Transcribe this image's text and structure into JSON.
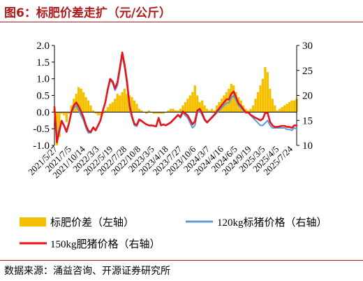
{
  "title": "图6：标肥价差走扩（元/公斤）",
  "source": "数据来源：涌益咨询、开源证券研究所",
  "colors": {
    "spread": "#f5c000",
    "price_120": "#5b9bd5",
    "price_150": "#e8141b",
    "accent": "#b0191b"
  },
  "chart_data": {
    "type": "bar+line",
    "x_tick_labels": [
      "2021/5/27",
      "2021/7/5",
      "2021/10/14",
      "2022/3/3",
      "2022/5/19",
      "2022/7/28",
      "2022/10/8",
      "2023/3/5",
      "2023/4/18",
      "2023/7/27",
      "2023/10/6",
      "2024/3/7",
      "2024/4/16",
      "2024/6/5",
      "2024/9/19",
      "2025/3/5",
      "2025/4/5",
      "2025/7/24"
    ],
    "y_left": {
      "min": -1.0,
      "max": 2.0,
      "ticks": [
        "-1.0",
        "-0.5",
        "0.0",
        "0.5",
        "1.0",
        "1.5",
        "2.0"
      ]
    },
    "y_right": {
      "min": 10,
      "max": 30,
      "ticks": [
        "10",
        "15",
        "20",
        "25",
        "30"
      ]
    },
    "x_index_range": [
      0,
      100
    ],
    "series": [
      {
        "name": "标肥价差（左轴）",
        "type": "bar",
        "axis": "left",
        "color": "#f5c000",
        "x": [
          0,
          1,
          2,
          3,
          4,
          5,
          6,
          7,
          8,
          9,
          10,
          11,
          12,
          13,
          14,
          15,
          16,
          17,
          18,
          19,
          20,
          21,
          22,
          23,
          24,
          25,
          26,
          27,
          28,
          29,
          30,
          31,
          32,
          33,
          34,
          35,
          36,
          37,
          38,
          39,
          40,
          41,
          42,
          43,
          44,
          45,
          46,
          47,
          48,
          49,
          50,
          51,
          52,
          53,
          54,
          55,
          56,
          57,
          58,
          59,
          60,
          61,
          62,
          63,
          64,
          65,
          66,
          67,
          68,
          69,
          70,
          71,
          72,
          73,
          74,
          75,
          76,
          77,
          78,
          79,
          80,
          81,
          82,
          83,
          84,
          85,
          86,
          87,
          88,
          89,
          90,
          91,
          92,
          93,
          94,
          95,
          96,
          97,
          98,
          99,
          100
        ],
        "values": [
          0.1,
          -1.0,
          -0.75,
          -0.05,
          -0.1,
          -0.3,
          -0.05,
          0.2,
          0.4,
          0.55,
          0.75,
          0.7,
          0.6,
          0.45,
          0.35,
          0.2,
          0.05,
          -0.05,
          -0.1,
          -0.1,
          -0.05,
          0.05,
          0.15,
          0.25,
          0.3,
          0.4,
          0.55,
          0.5,
          0.6,
          0.7,
          0.55,
          0.5,
          0.45,
          0.35,
          0.25,
          0.1,
          0.05,
          0.0,
          -0.05,
          0.05,
          0.0,
          -0.05,
          -0.05,
          -0.05,
          -0.05,
          -0.05,
          0.0,
          0.05,
          0.1,
          0.1,
          0.05,
          0.05,
          0.1,
          0.2,
          0.3,
          0.4,
          0.5,
          0.6,
          0.8,
          0.5,
          0.3,
          0.35,
          0.2,
          0.1,
          0.05,
          0.1,
          0.05,
          0.2,
          0.3,
          0.4,
          0.5,
          0.6,
          0.7,
          0.85,
          0.8,
          0.6,
          0.45,
          0.35,
          0.2,
          0.1,
          0.05,
          0.1,
          0.2,
          0.4,
          0.6,
          0.8,
          1.0,
          1.35,
          1.2,
          0.7,
          0.4,
          0.2,
          0.05,
          0.1,
          0.15,
          0.2,
          0.25,
          0.3,
          0.35,
          0.35,
          0.4
        ]
      },
      {
        "name": "120kg标猪价格（右轴）",
        "type": "line",
        "axis": "right",
        "color": "#5b9bd5",
        "x": [
          0,
          1,
          2,
          3,
          4,
          5,
          6,
          7,
          8,
          9,
          10,
          11,
          12,
          13,
          14,
          15,
          16,
          17,
          18,
          19,
          20,
          21,
          22,
          23,
          24,
          25,
          26,
          27,
          28,
          29,
          30,
          31,
          32,
          33,
          34,
          35,
          36,
          37,
          38,
          39,
          40,
          41,
          42,
          43,
          44,
          45,
          46,
          47,
          48,
          49,
          50,
          51,
          52,
          53,
          54,
          55,
          56,
          57,
          58,
          59,
          60,
          61,
          62,
          63,
          64,
          65,
          66,
          67,
          68,
          69,
          70,
          71,
          72,
          73,
          74,
          75,
          76,
          77,
          78,
          79,
          80,
          81,
          82,
          83,
          84,
          85,
          86,
          87,
          88,
          89,
          90,
          91,
          92,
          93,
          94,
          95,
          96,
          97,
          98,
          99,
          100
        ],
        "values": [
          17.5,
          11.5,
          13.5,
          15.0,
          14.0,
          13.0,
          14.5,
          16.5,
          17.5,
          18.0,
          17.0,
          16.0,
          15.0,
          13.5,
          12.5,
          12.5,
          13.5,
          13.0,
          14.0,
          15.0,
          17.0,
          18.5,
          21.0,
          23.0,
          22.5,
          21.0,
          22.0,
          25.0,
          28.0,
          25.5,
          22.0,
          17.5,
          15.5,
          14.0,
          13.8,
          15.0,
          14.8,
          14.5,
          14.2,
          14.0,
          14.0,
          14.0,
          13.8,
          15.5,
          14.0,
          14.2,
          14.0,
          14.2,
          14.5,
          15.0,
          15.5,
          16.0,
          15.5,
          16.5,
          16.0,
          15.5,
          14.5,
          13.5,
          14.0,
          16.5,
          17.0,
          16.0,
          15.0,
          14.5,
          15.0,
          15.5,
          16.0,
          16.5,
          17.0,
          17.5,
          18.0,
          18.5,
          18.5,
          19.5,
          20.0,
          19.0,
          18.0,
          17.5,
          17.0,
          16.5,
          16.5,
          16.0,
          15.5,
          15.0,
          14.5,
          14.0,
          14.0,
          14.5,
          15.0,
          14.0,
          13.5,
          13.5,
          13.5,
          13.5,
          13.5,
          13.5,
          13.2,
          13.2,
          13.0,
          13.5,
          13.3
        ]
      },
      {
        "name": "150kg肥猪价格（右轴）",
        "type": "line",
        "axis": "right",
        "color": "#e8141b",
        "x": [
          0,
          1,
          2,
          3,
          4,
          5,
          6,
          7,
          8,
          9,
          10,
          11,
          12,
          13,
          14,
          15,
          16,
          17,
          18,
          19,
          20,
          21,
          22,
          23,
          24,
          25,
          26,
          27,
          28,
          29,
          30,
          31,
          32,
          33,
          34,
          35,
          36,
          37,
          38,
          39,
          40,
          41,
          42,
          43,
          44,
          45,
          46,
          47,
          48,
          49,
          50,
          51,
          52,
          53,
          54,
          55,
          56,
          57,
          58,
          59,
          60,
          61,
          62,
          63,
          64,
          65,
          66,
          67,
          68,
          69,
          70,
          71,
          72,
          73,
          74,
          75,
          76,
          77,
          78,
          79,
          80,
          81,
          82,
          83,
          84,
          85,
          86,
          87,
          88,
          89,
          90,
          91,
          92,
          93,
          94,
          95,
          96,
          97,
          98,
          99,
          100
        ],
        "values": [
          17.7,
          10.6,
          12.8,
          14.9,
          13.9,
          12.7,
          14.4,
          16.7,
          18.0,
          18.6,
          17.8,
          16.8,
          15.6,
          14.0,
          12.9,
          12.7,
          13.6,
          13.0,
          14.0,
          15.0,
          17.0,
          18.6,
          21.2,
          23.3,
          22.8,
          21.4,
          22.6,
          25.5,
          28.6,
          26.0,
          22.6,
          18.0,
          15.8,
          14.3,
          14.1,
          15.2,
          14.9,
          14.5,
          14.2,
          14.0,
          14.0,
          13.9,
          13.8,
          15.5,
          14.0,
          14.2,
          14.0,
          14.3,
          14.6,
          15.1,
          15.6,
          16.1,
          15.7,
          16.8,
          16.4,
          16.0,
          15.1,
          14.2,
          14.8,
          17.0,
          17.3,
          16.4,
          15.2,
          14.6,
          15.1,
          15.6,
          16.1,
          16.8,
          17.4,
          18.0,
          18.6,
          19.2,
          19.2,
          20.3,
          20.8,
          19.6,
          18.4,
          17.9,
          17.2,
          16.6,
          16.6,
          16.1,
          15.8,
          15.5,
          15.3,
          15.0,
          15.3,
          16.5,
          16.5,
          14.7,
          14.0,
          13.7,
          13.7,
          13.8,
          13.9,
          13.9,
          13.7,
          13.7,
          13.5,
          14.0,
          14.0
        ]
      }
    ],
    "legend": [
      "标肥价差（左轴）",
      "120kg标猪价格（右轴）",
      "150kg肥猪价格（右轴）"
    ],
    "legend_placement": "bottom",
    "grid": false
  }
}
